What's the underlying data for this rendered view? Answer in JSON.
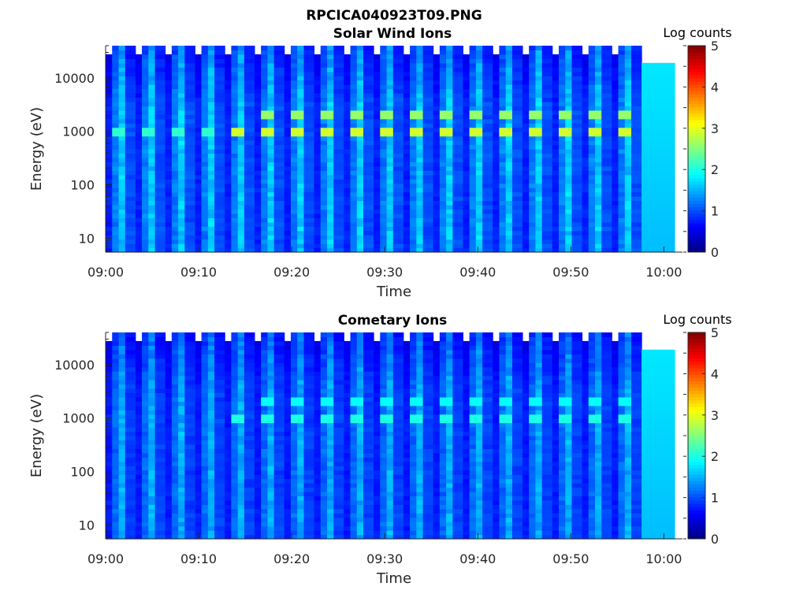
{
  "figure": {
    "title": "RPCICA040923T09.PNG"
  },
  "colormap": "jet",
  "chart_data": [
    {
      "type": "heatmap",
      "title": "Solar Wind Ions",
      "xlabel": "Time",
      "ylabel": "Energy (eV)",
      "x_range": [
        "09:00",
        "10:02"
      ],
      "x_ticks": [
        "09:00",
        "09:10",
        "09:20",
        "09:30",
        "09:40",
        "09:50",
        "10:00"
      ],
      "y_scale": "log",
      "y_range": [
        5.5,
        40000
      ],
      "y_ticks": [
        "10",
        "100",
        "1000",
        "10000"
      ],
      "colorbar": {
        "label": "Log counts",
        "range": [
          0,
          5
        ],
        "ticks": [
          "0",
          "1",
          "2",
          "3",
          "4",
          "5"
        ]
      },
      "sweep_period_minutes": 3.2,
      "sweep_count": 18,
      "peak_minutes": [
        2.3,
        5.5,
        8.7,
        12.0,
        15.2,
        18.5,
        21.7,
        24.9,
        28.1,
        31.3,
        34.6,
        37.8,
        41.0,
        44.3,
        47.5,
        50.7,
        53.9,
        57.2
      ],
      "peak_energy_eV": 1000,
      "secondary_energy_eV": 2000,
      "peak_log_counts": 2.9,
      "secondary_log_counts": 2.6,
      "background_log_counts": [
        0.6,
        1.9
      ],
      "final_block_log_counts": 1.6
    },
    {
      "type": "heatmap",
      "title": "Cometary Ions",
      "xlabel": "Time",
      "ylabel": "Energy (eV)",
      "x_range": [
        "09:00",
        "10:02"
      ],
      "x_ticks": [
        "09:00",
        "09:10",
        "09:20",
        "09:30",
        "09:40",
        "09:50",
        "10:00"
      ],
      "y_scale": "log",
      "y_range": [
        5.5,
        40000
      ],
      "y_ticks": [
        "10",
        "100",
        "1000",
        "10000"
      ],
      "colorbar": {
        "label": "Log counts",
        "range": [
          0,
          5
        ],
        "ticks": [
          "0",
          "1",
          "2",
          "3",
          "4",
          "5"
        ]
      },
      "sweep_period_minutes": 3.2,
      "sweep_count": 18,
      "peak_minutes": [
        2.3,
        5.5,
        8.7,
        12.0,
        15.2,
        18.5,
        21.7,
        24.9,
        28.1,
        31.3,
        34.6,
        37.8,
        41.0,
        44.3,
        47.5,
        50.7,
        53.9,
        57.2
      ],
      "peak_energy_eV": 1000,
      "secondary_energy_eV": 2000,
      "peak_log_counts": 2.0,
      "secondary_log_counts": 1.9,
      "background_log_counts": [
        0.6,
        1.7
      ],
      "final_block_log_counts": 1.6
    }
  ]
}
